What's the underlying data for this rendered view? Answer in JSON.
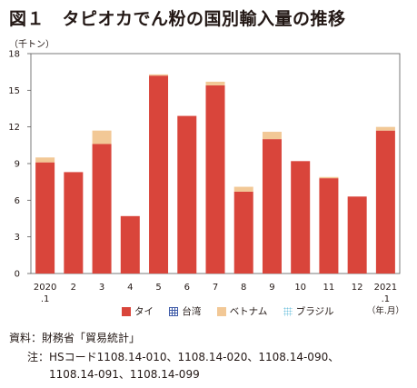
{
  "title": "図１　タピオカでん粉の国別輸入量の推移",
  "unit_label": "（千トン）",
  "x_unit_label": "（年.月）",
  "source": "資料：財務省「貿易統計」",
  "note_line1": "注：HSコード1108.14-010、1108.14-020、1108.14-090、",
  "note_line2": "1108.14-091、1108.14-099",
  "colors": {
    "thailand": "#d9453b",
    "taiwan": "#3f5ba8",
    "vietnam": "#f2c896",
    "brazil": "#7fc8e0"
  },
  "chart_data": {
    "type": "bar",
    "stacked": true,
    "title": "タピオカでん粉の国別輸入量の推移",
    "ylabel": "（千トン）",
    "xlabel": "（年.月）",
    "ylim": [
      0,
      18
    ],
    "yticks": [
      0,
      3,
      6,
      9,
      12,
      15,
      18
    ],
    "grid": false,
    "legend_position": "bottom",
    "categories": [
      "2020.1",
      "2",
      "3",
      "4",
      "5",
      "6",
      "7",
      "8",
      "9",
      "10",
      "11",
      "12",
      "2021.1"
    ],
    "category_labels": [
      [
        "2020",
        ".1"
      ],
      [
        "2"
      ],
      [
        "3"
      ],
      [
        "4"
      ],
      [
        "5"
      ],
      [
        "6"
      ],
      [
        "7"
      ],
      [
        "8"
      ],
      [
        "9"
      ],
      [
        "10"
      ],
      [
        "11"
      ],
      [
        "12"
      ],
      [
        "2021",
        ".1"
      ]
    ],
    "series": [
      {
        "name": "タイ",
        "color": "#d9453b",
        "values": [
          9.1,
          8.3,
          10.6,
          4.7,
          16.2,
          12.9,
          15.4,
          6.7,
          11.0,
          9.2,
          7.8,
          6.3,
          11.7
        ]
      },
      {
        "name": "台湾",
        "color": "#3f5ba8",
        "values": [
          0,
          0,
          0,
          0,
          0,
          0,
          0,
          0,
          0,
          0,
          0,
          0,
          0
        ]
      },
      {
        "name": "ベトナム",
        "color": "#f2c896",
        "values": [
          0.4,
          0,
          1.1,
          0,
          0.1,
          0,
          0.3,
          0.4,
          0.6,
          0,
          0.1,
          0,
          0.3
        ]
      },
      {
        "name": "ブラジル",
        "color": "#7fc8e0",
        "values": [
          0,
          0,
          0,
          0,
          0,
          0,
          0,
          0,
          0,
          0,
          0,
          0,
          0
        ]
      }
    ]
  }
}
